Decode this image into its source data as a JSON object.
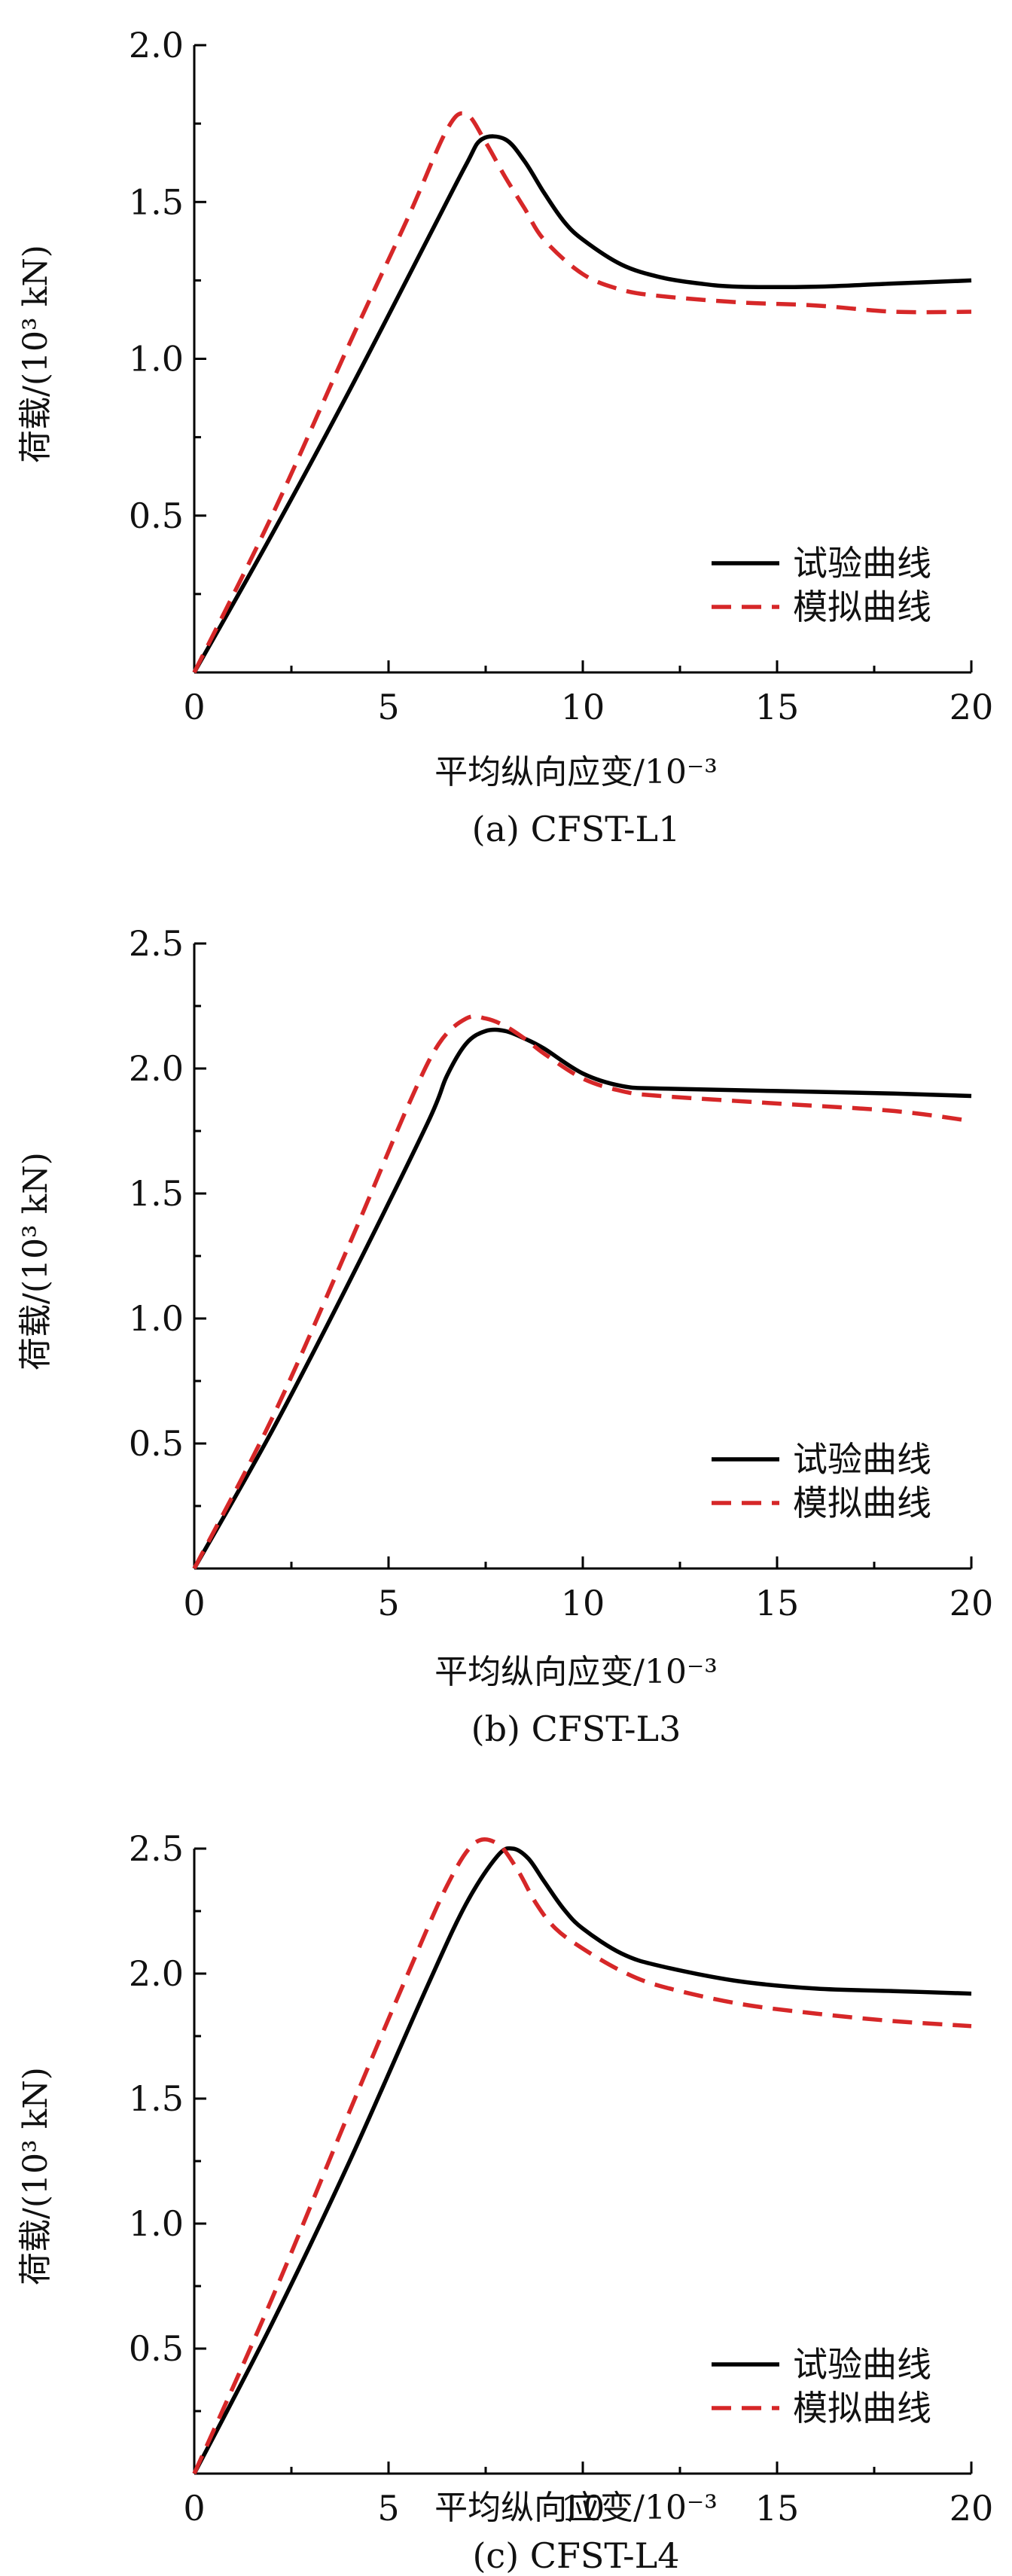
{
  "figure": {
    "panels": [
      {
        "caption": "(a) CFST-L1",
        "xlabel": "平均纵向应变/10⁻³",
        "ylabel": "荷载/(10³ kN)"
      },
      {
        "caption": "(b) CFST-L3",
        "xlabel": "平均纵向应变/10⁻³",
        "ylabel": "荷载/(10³ kN)"
      },
      {
        "caption": "(c) CFST-L4",
        "xlabel": "平均纵向应变/10⁻³",
        "ylabel": "荷载/(10³ kN)"
      }
    ]
  },
  "chart_data": [
    {
      "type": "line",
      "title": "(a) CFST-L1",
      "xlabel": "平均纵向应变/10⁻³",
      "ylabel": "荷载/(10³ kN)",
      "xlim": [
        0,
        20
      ],
      "ylim": [
        0,
        2.0
      ],
      "xticks": [
        0,
        5,
        10,
        15,
        20
      ],
      "yticks": [
        0.5,
        1.0,
        1.5,
        2.0
      ],
      "y_tick_labels": [
        "0.5",
        "1.0",
        "1.5",
        "2.0"
      ],
      "legend_position": "lower-right",
      "grid": false,
      "series": [
        {
          "name": "试验曲线",
          "style": "solid",
          "color": "#000000",
          "x": [
            0,
            2,
            4,
            6,
            7,
            7.4,
            8,
            8.5,
            9,
            9.5,
            10,
            11,
            12,
            13,
            14,
            16,
            18,
            20
          ],
          "y": [
            0,
            0.44,
            0.9,
            1.38,
            1.62,
            1.7,
            1.7,
            1.63,
            1.53,
            1.44,
            1.38,
            1.3,
            1.26,
            1.24,
            1.23,
            1.23,
            1.24,
            1.25
          ]
        },
        {
          "name": "模拟曲线",
          "style": "dashed",
          "color": "#d62728",
          "x": [
            0,
            2,
            4,
            5.5,
            6.5,
            7,
            7.5,
            8,
            8.5,
            9,
            10,
            11,
            12,
            14,
            16,
            18,
            20
          ],
          "y": [
            0,
            0.5,
            1.05,
            1.45,
            1.73,
            1.78,
            1.69,
            1.58,
            1.48,
            1.38,
            1.27,
            1.22,
            1.2,
            1.18,
            1.17,
            1.15,
            1.15
          ]
        }
      ]
    },
    {
      "type": "line",
      "title": "(b) CFST-L3",
      "xlabel": "平均纵向应变/10⁻³",
      "ylabel": "荷载/(10³ kN)",
      "xlim": [
        0,
        20
      ],
      "ylim": [
        0,
        2.5
      ],
      "xticks": [
        0,
        5,
        10,
        15,
        20
      ],
      "yticks": [
        0.5,
        1.0,
        1.5,
        2.0,
        2.5
      ],
      "y_tick_labels": [
        "0.5",
        "1.0",
        "1.5",
        "2.0",
        "2.5"
      ],
      "legend_position": "lower-right",
      "grid": false,
      "series": [
        {
          "name": "试验曲线",
          "style": "solid",
          "color": "#000000",
          "x": [
            0,
            2,
            4,
            6,
            6.5,
            7,
            7.5,
            8,
            8.5,
            9,
            10,
            11,
            12,
            15,
            18,
            20
          ],
          "y": [
            0,
            0.55,
            1.15,
            1.78,
            1.97,
            2.1,
            2.15,
            2.15,
            2.12,
            2.08,
            1.98,
            1.93,
            1.92,
            1.91,
            1.9,
            1.89
          ]
        },
        {
          "name": "模拟曲线",
          "style": "dashed",
          "color": "#d62728",
          "x": [
            0,
            2,
            4,
            5.5,
            6.3,
            7,
            7.5,
            8,
            8.5,
            9,
            10,
            11,
            12,
            15,
            18,
            20
          ],
          "y": [
            0,
            0.6,
            1.3,
            1.85,
            2.1,
            2.2,
            2.2,
            2.17,
            2.12,
            2.06,
            1.96,
            1.91,
            1.89,
            1.86,
            1.83,
            1.79
          ]
        }
      ]
    },
    {
      "type": "line",
      "title": "(c) CFST-L4",
      "xlabel": "平均纵向应变/10⁻³",
      "ylabel": "荷载/(10³ kN)",
      "xlim": [
        0,
        20
      ],
      "ylim": [
        0,
        2.5
      ],
      "xticks": [
        0,
        5,
        10,
        15,
        20
      ],
      "yticks": [
        0.5,
        1.0,
        1.5,
        2.0,
        2.5
      ],
      "y_tick_labels": [
        "0.5",
        "1.0",
        "1.5",
        "2.0",
        "2.5"
      ],
      "legend_position": "lower-right",
      "grid": false,
      "series": [
        {
          "name": "试验曲线",
          "style": "solid",
          "color": "#000000",
          "x": [
            0,
            2,
            4,
            6,
            7,
            7.8,
            8.2,
            8.6,
            9,
            9.5,
            10,
            11,
            12,
            14,
            16,
            18,
            20
          ],
          "y": [
            0,
            0.6,
            1.25,
            1.95,
            2.28,
            2.47,
            2.5,
            2.46,
            2.37,
            2.26,
            2.18,
            2.08,
            2.03,
            1.97,
            1.94,
            1.93,
            1.92
          ]
        },
        {
          "name": "模拟曲线",
          "style": "dashed",
          "color": "#d62728",
          "x": [
            0,
            2,
            4,
            5.5,
            6.5,
            7.2,
            7.8,
            8.3,
            8.8,
            9.3,
            10,
            11,
            12,
            14,
            16,
            18,
            20
          ],
          "y": [
            0,
            0.7,
            1.45,
            2.0,
            2.35,
            2.52,
            2.52,
            2.42,
            2.28,
            2.18,
            2.1,
            2.01,
            1.95,
            1.88,
            1.84,
            1.81,
            1.79
          ]
        }
      ]
    }
  ]
}
